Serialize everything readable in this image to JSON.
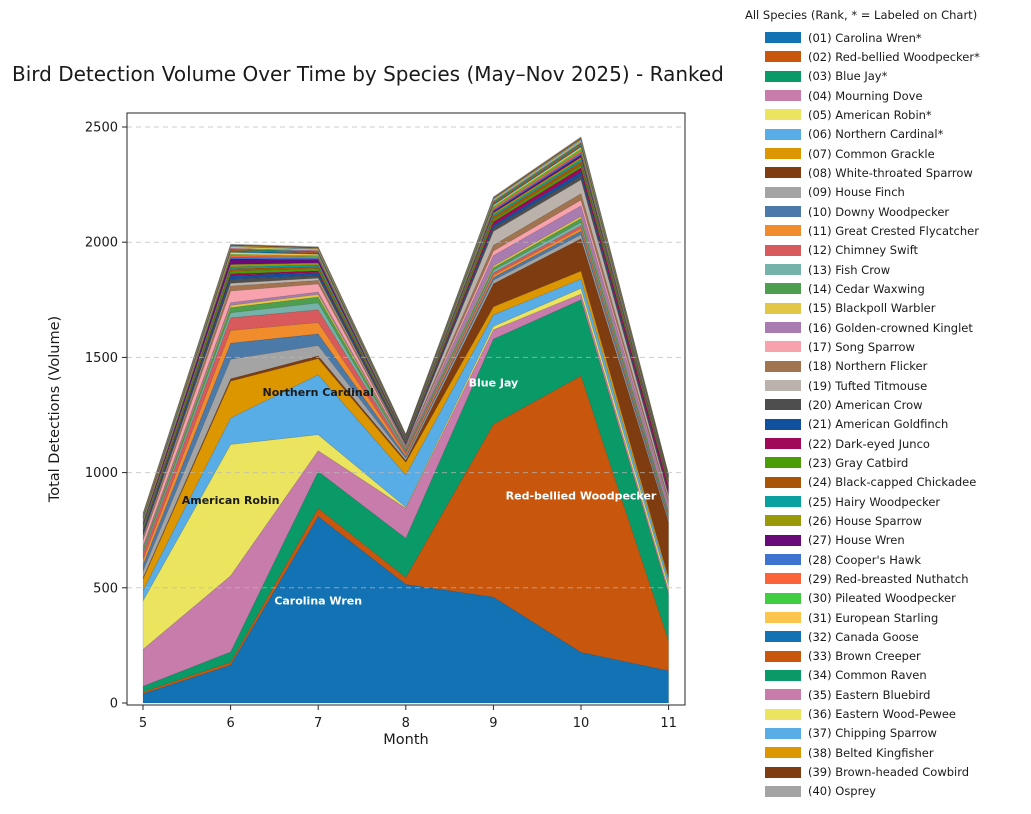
{
  "chart_data": {
    "type": "area",
    "stacked": true,
    "title": "Bird Detection Volume Over Time by Species (May–Nov 2025) - Ranked",
    "xlabel": "Month",
    "ylabel": "Total Detections (Volume)",
    "x": [
      5,
      6,
      7,
      8,
      9,
      10,
      11
    ],
    "xticks": [
      5,
      6,
      7,
      8,
      9,
      10,
      11
    ],
    "yticks": [
      0,
      500,
      1000,
      1500,
      2000,
      2500
    ],
    "ylim": [
      0,
      2500
    ],
    "grid": "horizontal dashed gridlines",
    "legend_title": "All Species (Rank, * = Labeled on Chart)",
    "legend_position": "outside right",
    "series": [
      {
        "label": "(01) Carolina Wren*",
        "name": "Carolina Wren",
        "color": "#1272b4",
        "values": [
          40,
          165,
          810,
          515,
          460,
          220,
          140
        ]
      },
      {
        "label": "(02) Red-bellied Woodpecker*",
        "name": "Red-bellied Woodpecker",
        "color": "#c8570d",
        "values": [
          8,
          12,
          35,
          30,
          750,
          1200,
          130
        ]
      },
      {
        "label": "(03) Blue Jay*",
        "name": "Blue Jay",
        "color": "#0a9a68",
        "values": [
          25,
          45,
          160,
          170,
          370,
          330,
          205
        ]
      },
      {
        "label": "(04) Mourning Dove",
        "name": "Mourning Dove",
        "color": "#c87cac",
        "values": [
          160,
          330,
          90,
          130,
          40,
          25,
          15
        ]
      },
      {
        "label": "(05) American Robin*",
        "name": "American Robin",
        "color": "#ebe45e",
        "values": [
          210,
          570,
          70,
          5,
          15,
          25,
          20
        ]
      },
      {
        "label": "(06) Northern Cardinal*",
        "name": "Northern Cardinal",
        "color": "#58ade6",
        "values": [
          45,
          115,
          260,
          140,
          50,
          40,
          22
        ]
      },
      {
        "label": "(07) Common Grackle",
        "name": "Common Grackle",
        "color": "#dc9600",
        "values": [
          50,
          160,
          70,
          55,
          35,
          35,
          12
        ]
      },
      {
        "label": "(08) White-throated Sparrow",
        "name": "White-throated Sparrow",
        "color": "#7e3c10",
        "values": [
          5,
          10,
          12,
          8,
          100,
          140,
          240
        ]
      },
      {
        "label": "(09) House Finch",
        "name": "House Finch",
        "color": "#a4a4a4",
        "values": [
          30,
          85,
          45,
          10,
          15,
          18,
          10
        ]
      },
      {
        "label": "(10) Downy Woodpecker",
        "name": "Downy Woodpecker",
        "color": "#4c7aa8",
        "values": [
          26,
          70,
          50,
          8,
          12,
          15,
          8
        ]
      },
      {
        "label": "(11) Great Crested Flycatcher",
        "name": "Great Crested Flycatcher",
        "color": "#f08c2c",
        "values": [
          23,
          55,
          50,
          10,
          10,
          12,
          5
        ]
      },
      {
        "label": "(12) Chimney Swift",
        "name": "Chimney Swift",
        "color": "#d95a5c",
        "values": [
          25,
          55,
          55,
          8,
          10,
          12,
          4
        ]
      },
      {
        "label": "(13) Fish Crow",
        "name": "Fish Crow",
        "color": "#74b2aa",
        "values": [
          10,
          22,
          30,
          5,
          12,
          15,
          8
        ]
      },
      {
        "label": "(14) Cedar Waxwing",
        "name": "Cedar Waxwing",
        "color": "#4e9e50",
        "values": [
          10,
          22,
          25,
          5,
          10,
          16,
          10
        ]
      },
      {
        "label": "(15) Blackpoll Warbler",
        "name": "Blackpoll Warbler",
        "color": "#e2c646",
        "values": [
          6,
          10,
          12,
          4,
          8,
          10,
          5
        ]
      },
      {
        "label": "(16) Golden-crowned Kinglet",
        "name": "Golden-crowned Kinglet",
        "color": "#a87cb0",
        "values": [
          8,
          12,
          10,
          4,
          45,
          45,
          30
        ]
      },
      {
        "label": "(17) Song Sparrow",
        "name": "Song Sparrow",
        "color": "#f8a2ae",
        "values": [
          25,
          50,
          35,
          5,
          20,
          25,
          8
        ]
      },
      {
        "label": "(18) Northern Flicker",
        "name": "Northern Flicker",
        "color": "#a2734f",
        "values": [
          10,
          22,
          15,
          4,
          25,
          28,
          12
        ]
      },
      {
        "label": "(19) Tufted Titmouse",
        "name": "Tufted Titmouse",
        "color": "#bcb2ac",
        "values": [
          8,
          12,
          10,
          4,
          60,
          60,
          15
        ]
      },
      {
        "label": "(20) American Crow",
        "name": "American Crow",
        "color": "#4e4e4e",
        "values": [
          10,
          18,
          12,
          4,
          15,
          18,
          8
        ]
      },
      {
        "label": "(21) American Goldfinch",
        "name": "American Goldfinch",
        "color": "#10509e",
        "values": [
          8,
          15,
          12,
          4,
          12,
          16,
          6
        ]
      },
      {
        "label": "(22) Dark-eyed Junco",
        "name": "Dark-eyed Junco",
        "color": "#a00858",
        "values": [
          5,
          8,
          8,
          3,
          15,
          18,
          25
        ]
      },
      {
        "label": "(23) Gray Catbird",
        "name": "Gray Catbird",
        "color": "#4c9c08",
        "values": [
          6,
          12,
          10,
          3,
          10,
          12,
          5
        ]
      },
      {
        "label": "(24) Black-capped Chickadee",
        "name": "Black-capped Chickadee",
        "color": "#aa5408",
        "values": [
          5,
          10,
          8,
          3,
          12,
          14,
          8
        ]
      },
      {
        "label": "(25) Hairy Woodpecker",
        "name": "Hairy Woodpecker",
        "color": "#0aa0a0",
        "values": [
          5,
          8,
          8,
          3,
          8,
          10,
          4
        ]
      },
      {
        "label": "(26) House Sparrow",
        "name": "House Sparrow",
        "color": "#9a9a08",
        "values": [
          6,
          10,
          8,
          3,
          8,
          10,
          4
        ]
      },
      {
        "label": "(27) House Wren",
        "name": "House Wren",
        "color": "#680a7a",
        "values": [
          8,
          25,
          15,
          3,
          8,
          10,
          4
        ]
      },
      {
        "label": "(28) Cooper's Hawk",
        "name": "Cooper's Hawk",
        "color": "#3e74d0",
        "values": [
          4,
          6,
          6,
          2,
          6,
          8,
          3
        ]
      },
      {
        "label": "(29) Red-breasted Nuthatch",
        "name": "Red-breasted Nuthatch",
        "color": "#fa6438",
        "values": [
          5,
          8,
          6,
          2,
          8,
          10,
          4
        ]
      },
      {
        "label": "(30) Pileated Woodpecker",
        "name": "Pileated Woodpecker",
        "color": "#40ce40",
        "values": [
          4,
          6,
          5,
          2,
          6,
          8,
          3
        ]
      },
      {
        "label": "(31) European Starling",
        "name": "European Starling",
        "color": "#fcc64e",
        "values": [
          5,
          8,
          6,
          2,
          6,
          8,
          3
        ]
      },
      {
        "label": "(32) Canada Goose",
        "name": "Canada Goose",
        "color": "#1272b4",
        "values": [
          4,
          5,
          5,
          2,
          5,
          6,
          2
        ]
      },
      {
        "label": "(33) Brown Creeper",
        "name": "Brown Creeper",
        "color": "#c8570d",
        "values": [
          4,
          5,
          4,
          2,
          5,
          6,
          2
        ]
      },
      {
        "label": "(34) Common Raven",
        "name": "Common Raven",
        "color": "#0a9a68",
        "values": [
          3,
          4,
          4,
          2,
          5,
          6,
          2
        ]
      },
      {
        "label": "(35) Eastern Bluebird",
        "name": "Eastern Bluebird",
        "color": "#c87cac",
        "values": [
          4,
          5,
          4,
          2,
          4,
          5,
          2
        ]
      },
      {
        "label": "(36) Eastern Wood-Pewee",
        "name": "Eastern Wood-Pewee",
        "color": "#ebe45e",
        "values": [
          3,
          4,
          4,
          1,
          4,
          5,
          2
        ]
      },
      {
        "label": "(37) Chipping Sparrow",
        "name": "Chipping Sparrow",
        "color": "#58ade6",
        "values": [
          3,
          4,
          3,
          1,
          4,
          5,
          2
        ]
      },
      {
        "label": "(38) Belted Kingfisher",
        "name": "Belted Kingfisher",
        "color": "#dc9600",
        "values": [
          3,
          3,
          3,
          1,
          3,
          4,
          2
        ]
      },
      {
        "label": "(39) Brown-headed Cowbird",
        "name": "Brown-headed Cowbird",
        "color": "#7e3c10",
        "values": [
          3,
          3,
          3,
          1,
          3,
          4,
          2
        ]
      },
      {
        "label": "(40) Osprey",
        "name": "Osprey",
        "color": "#a4a4a4",
        "values": [
          3,
          3,
          3,
          1,
          3,
          4,
          2
        ]
      }
    ],
    "annotations": [
      {
        "text": "Carolina Wren",
        "x": 7,
        "y": 445,
        "color": "#ffffff"
      },
      {
        "text": "American Robin",
        "x": 6,
        "y": 880,
        "color": "#1a1a1a"
      },
      {
        "text": "Northern Cardinal",
        "x": 7,
        "y": 1350,
        "color": "#1a1a1a"
      },
      {
        "text": "Blue Jay",
        "x": 9,
        "y": 1390,
        "color": "#ffffff"
      },
      {
        "text": "Red-bellied Woodpecker",
        "x": 10,
        "y": 900,
        "color": "#ffffff"
      }
    ]
  }
}
